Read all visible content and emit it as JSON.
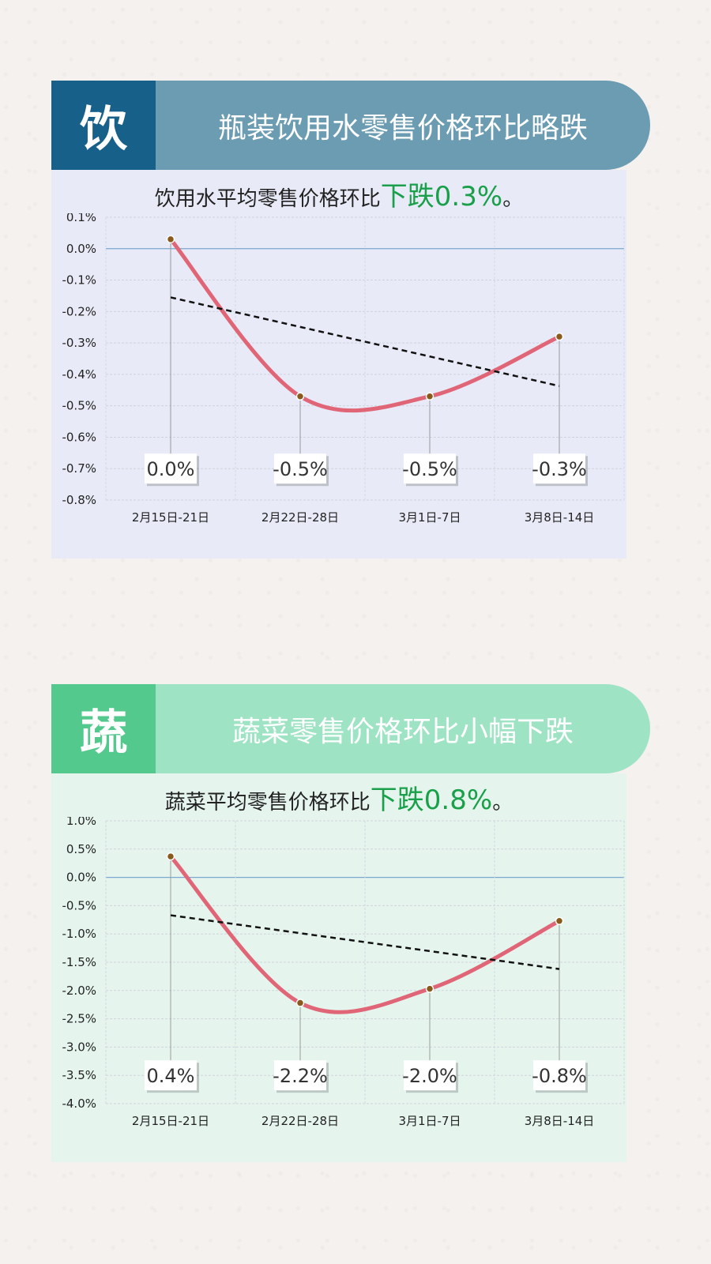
{
  "colors": {
    "curve": "#e06677",
    "trend": "#111111",
    "label_green": "#1aa04a",
    "s1_icon_bg": "#17608a",
    "s1_bar_bg": "#6b9cb2",
    "s1_panel_bg": "#e8ebf7",
    "s2_icon_bg": "#53c98e",
    "s2_bar_bg": "#9ee3c4",
    "s2_panel_bg": "#e5f5ee"
  },
  "sections": [
    {
      "icon_char": "饮",
      "title": "瓶装饮用水零售价格环比略跌",
      "subtitle_prefix": "饮用水平均零售价格环比",
      "subtitle_highlight": "下跌0.3%",
      "subtitle_suffix": "。",
      "chart_data": {
        "type": "line",
        "categories": [
          "2月15日-21日",
          "2月22日-28日",
          "3月1日-7日",
          "3月8日-14日"
        ],
        "series": [
          {
            "values": [
              0.03,
              -0.47,
              -0.47,
              -0.28
            ]
          }
        ],
        "data_labels": [
          "0.0%",
          "-0.5%",
          "-0.5%",
          "-0.3%"
        ],
        "trendline": [
          -0.155,
          -0.437
        ],
        "ylim": [
          -0.8,
          0.1
        ],
        "yticks": [
          0.1,
          0.0,
          -0.1,
          -0.2,
          -0.3,
          -0.4,
          -0.5,
          -0.6,
          -0.7,
          -0.8
        ],
        "ytick_labels": [
          "0.1%",
          "0.0%",
          "-0.1%",
          "-0.2%",
          "-0.3%",
          "-0.4%",
          "-0.5%",
          "-0.6%",
          "-0.7%",
          "-0.8%"
        ],
        "label_level": -0.7,
        "grid": true,
        "title": "",
        "xlabel": "",
        "ylabel": ""
      }
    },
    {
      "icon_char": "蔬",
      "title": "蔬菜零售价格环比小幅下跌",
      "subtitle_prefix": "蔬菜平均零售价格环比",
      "subtitle_highlight": "下跌0.8%",
      "subtitle_suffix": "。",
      "chart_data": {
        "type": "line",
        "categories": [
          "2月15日-21日",
          "2月22日-28日",
          "3月1日-7日",
          "3月8日-14日"
        ],
        "series": [
          {
            "values": [
              0.37,
              -2.22,
              -1.97,
              -0.77
            ]
          }
        ],
        "data_labels": [
          "0.4%",
          "-2.2%",
          "-2.0%",
          "-0.8%"
        ],
        "trendline": [
          -0.67,
          -1.62
        ],
        "ylim": [
          -4.0,
          1.0
        ],
        "yticks": [
          1.0,
          0.5,
          0.0,
          -0.5,
          -1.0,
          -1.5,
          -2.0,
          -2.5,
          -3.0,
          -3.5,
          -4.0
        ],
        "ytick_labels": [
          "1.0%",
          "0.5%",
          "0.0%",
          "-0.5%",
          "-1.0%",
          "-1.5%",
          "-2.0%",
          "-2.5%",
          "-3.0%",
          "-3.5%",
          "-4.0%"
        ],
        "label_level": -3.5,
        "grid": true,
        "title": "",
        "xlabel": "",
        "ylabel": ""
      }
    }
  ]
}
